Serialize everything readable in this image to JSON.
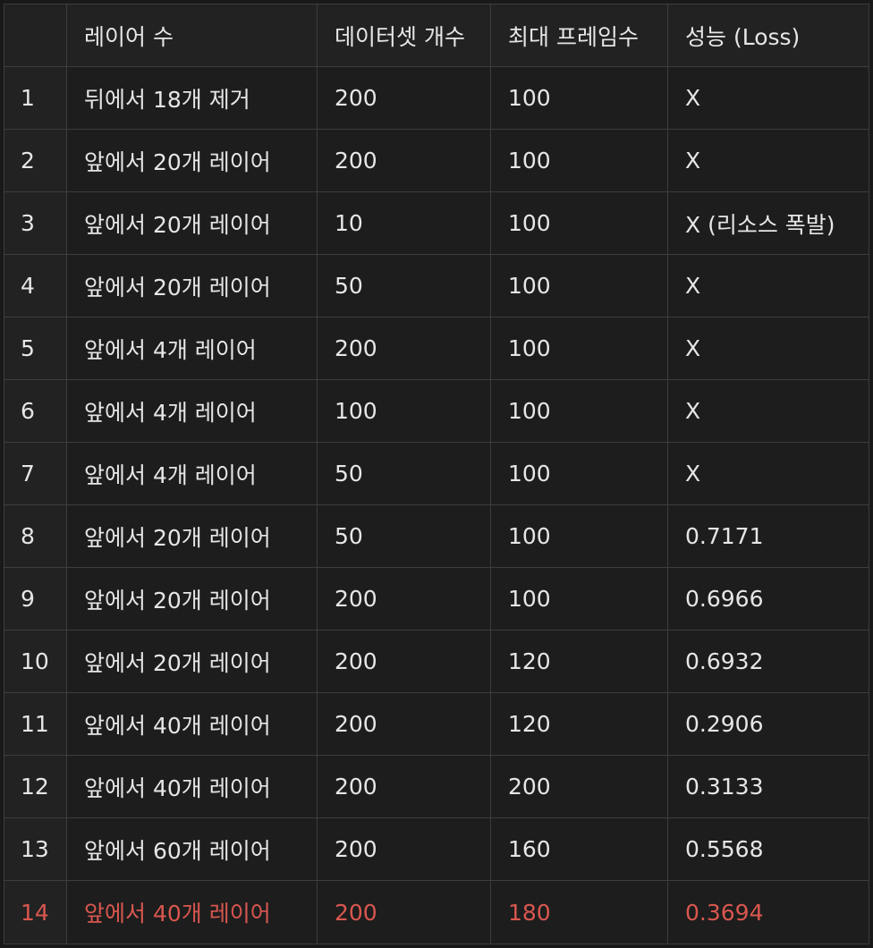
{
  "table": {
    "headers": [
      "",
      "레이어 수",
      "데이터셋 개수",
      "최대 프레임수",
      "성능 (Loss)"
    ],
    "rows": [
      {
        "idx": "1",
        "layers": "뒤에서 18개 제거",
        "dataset": "200",
        "frames": "100",
        "loss": "X"
      },
      {
        "idx": "2",
        "layers": "앞에서 20개 레이어",
        "dataset": "200",
        "frames": "100",
        "loss": "X"
      },
      {
        "idx": "3",
        "layers": "앞에서 20개 레이어",
        "dataset": "10",
        "frames": "100",
        "loss": "X (리소스 폭발)"
      },
      {
        "idx": "4",
        "layers": "앞에서 20개 레이어",
        "dataset": "50",
        "frames": "100",
        "loss": "X"
      },
      {
        "idx": "5",
        "layers": "앞에서 4개 레이어",
        "dataset": "200",
        "frames": "100",
        "loss": "X"
      },
      {
        "idx": "6",
        "layers": "앞에서 4개 레이어",
        "dataset": "100",
        "frames": "100",
        "loss": "X"
      },
      {
        "idx": "7",
        "layers": "앞에서 4개 레이어",
        "dataset": "50",
        "frames": "100",
        "loss": "X"
      },
      {
        "idx": "8",
        "layers": "앞에서 20개 레이어",
        "dataset": "50",
        "frames": "100",
        "loss": "0.7171"
      },
      {
        "idx": "9",
        "layers": "앞에서 20개 레이어",
        "dataset": "200",
        "frames": "100",
        "loss": "0.6966"
      },
      {
        "idx": "10",
        "layers": "앞에서 20개 레이어",
        "dataset": "200",
        "frames": "120",
        "loss": "0.6932"
      },
      {
        "idx": "11",
        "layers": "앞에서 40개 레이어",
        "dataset": "200",
        "frames": "120",
        "loss": "0.2906"
      },
      {
        "idx": "12",
        "layers": "앞에서 40개 레이어",
        "dataset": "200",
        "frames": "200",
        "loss": "0.3133"
      },
      {
        "idx": "13",
        "layers": "앞에서 60개 레이어",
        "dataset": "200",
        "frames": "160",
        "loss": "0.5568"
      },
      {
        "idx": "14",
        "layers": "앞에서 40개 레이어",
        "dataset": "200",
        "frames": "180",
        "loss": "0.3694"
      }
    ]
  },
  "colors": {
    "background": "#191919",
    "cell_background": "#1d1d1d",
    "header_background": "#222222",
    "border": "#3d3d3d",
    "text": "#e6e6e6",
    "highlight_text": "#d9574f"
  },
  "highlighted_row": "14"
}
